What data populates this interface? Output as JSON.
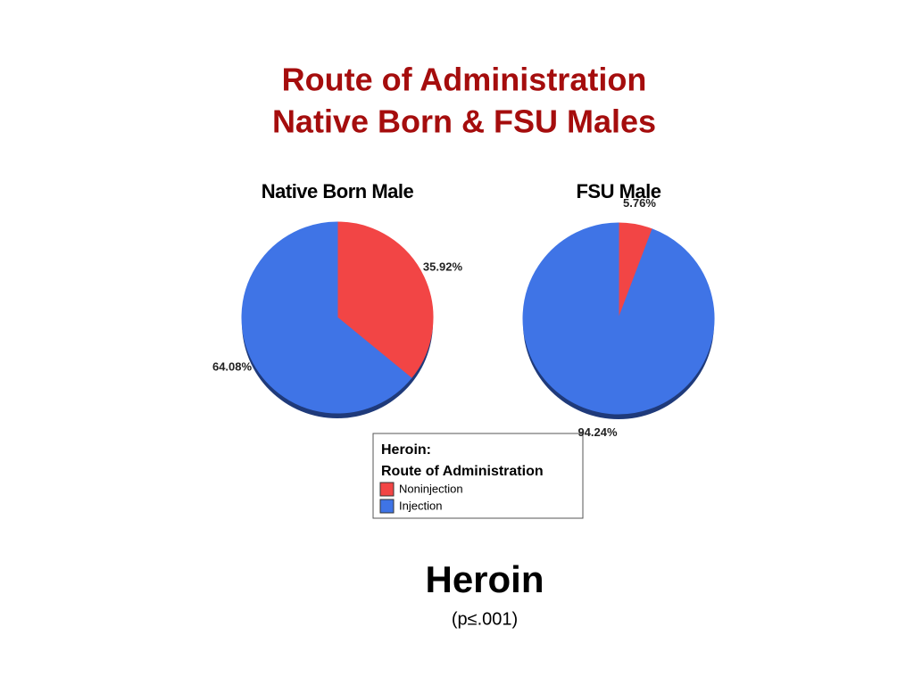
{
  "slide": {
    "title": [
      "Route of Administration",
      "Native Born & FSU Males"
    ],
    "legend_title": [
      "Heroin:",
      "Route of Administration"
    ],
    "footer": {
      "title": "Heroin",
      "subtitle": "(p≤.001)"
    }
  },
  "chart_data": [
    {
      "type": "pie",
      "title": "Native Born Male",
      "categories": [
        "Noninjection",
        "Injection"
      ],
      "values": [
        35.92,
        64.08
      ],
      "value_labels": [
        "35.92%",
        "64.08%"
      ],
      "colors": [
        "#f24545",
        "#3f74e6"
      ]
    },
    {
      "type": "pie",
      "title": "FSU Male",
      "categories": [
        "Noninjection",
        "Injection"
      ],
      "values": [
        5.76,
        94.24
      ],
      "value_labels": [
        "5.76%",
        "94.24%"
      ],
      "colors": [
        "#f24545",
        "#3f74e6"
      ]
    }
  ]
}
